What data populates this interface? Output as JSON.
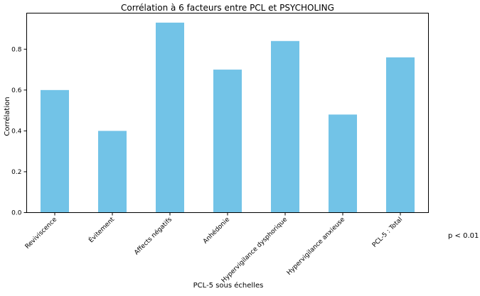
{
  "chart_data": {
    "type": "bar",
    "title": "Corrélation à 6 facteurs entre PCL et PSYCHOLING",
    "xlabel": "PCL-5 sous échelles",
    "ylabel": "Corrélation",
    "categories": [
      "Reviviscence",
      "Évitement",
      "Affects négatifs",
      "Anhédonie",
      "Hypervigilance dysphorique",
      "Hypervigilance anxieuse",
      "PCL-5 : Total"
    ],
    "values": [
      0.6,
      0.4,
      0.93,
      0.7,
      0.84,
      0.48,
      0.76
    ],
    "yticks": [
      "0.0",
      "0.2",
      "0.4",
      "0.6",
      "0.8"
    ],
    "ylim": [
      0,
      0.9765
    ],
    "grid": false,
    "bar_color": "#72c3e7",
    "annotation": "p < 0.01"
  }
}
